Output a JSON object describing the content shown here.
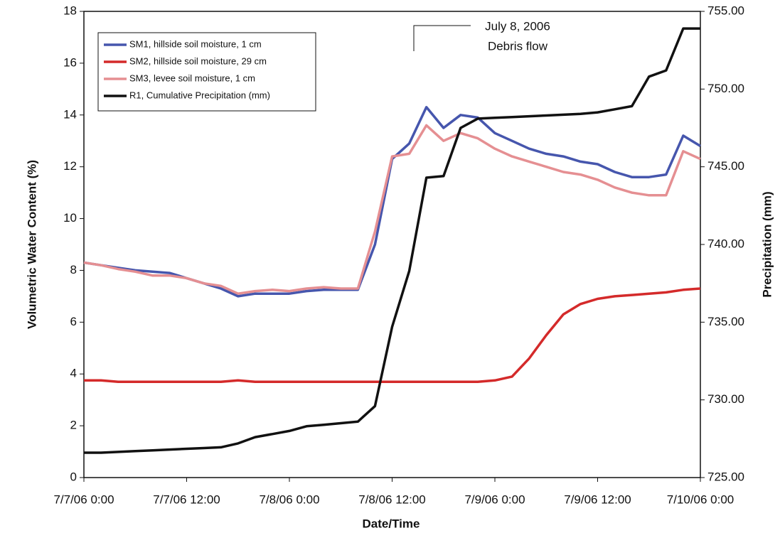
{
  "chart_data": {
    "type": "line",
    "xlabel": "Date/Time",
    "ylabel": "Volumetric Water Content (%)",
    "y2label": "Precipitation (mm)",
    "annotation": [
      "July 8, 2006",
      "Debris flow"
    ],
    "legend": "upper left",
    "grid": false,
    "x": [
      "2006-07-07T00:00",
      "2006-07-07T02:00",
      "2006-07-07T04:00",
      "2006-07-07T06:00",
      "2006-07-07T08:00",
      "2006-07-07T10:00",
      "2006-07-07T12:00",
      "2006-07-07T14:00",
      "2006-07-07T16:00",
      "2006-07-07T18:00",
      "2006-07-07T20:00",
      "2006-07-07T22:00",
      "2006-07-08T00:00",
      "2006-07-08T02:00",
      "2006-07-08T04:00",
      "2006-07-08T06:00",
      "2006-07-08T08:00",
      "2006-07-08T10:00",
      "2006-07-08T12:00",
      "2006-07-08T14:00",
      "2006-07-08T16:00",
      "2006-07-08T18:00",
      "2006-07-08T20:00",
      "2006-07-08T22:00",
      "2006-07-09T00:00",
      "2006-07-09T02:00",
      "2006-07-09T04:00",
      "2006-07-09T06:00",
      "2006-07-09T08:00",
      "2006-07-09T10:00",
      "2006-07-09T12:00",
      "2006-07-09T14:00",
      "2006-07-09T16:00",
      "2006-07-09T18:00",
      "2006-07-09T20:00",
      "2006-07-09T22:00",
      "2006-07-10T00:00"
    ],
    "series": [
      {
        "name": "SM1, hillside soil moisture, 1 cm",
        "color": "#4656ad",
        "values": [
          8.3,
          8.2,
          8.1,
          8.0,
          7.95,
          7.9,
          7.7,
          7.5,
          7.3,
          7.0,
          7.1,
          7.1,
          7.1,
          7.2,
          7.25,
          7.25,
          7.25,
          9.0,
          12.3,
          12.9,
          14.3,
          13.5,
          14.0,
          13.9,
          13.3,
          13.0,
          12.7,
          12.5,
          12.4,
          12.2,
          12.1,
          11.8,
          11.6,
          11.6,
          11.7,
          13.2,
          12.8
        ]
      },
      {
        "name": "SM2, hillside soil moisture, 29 cm",
        "color": "#d42a2a",
        "values": [
          3.75,
          3.75,
          3.7,
          3.7,
          3.7,
          3.7,
          3.7,
          3.7,
          3.7,
          3.75,
          3.7,
          3.7,
          3.7,
          3.7,
          3.7,
          3.7,
          3.7,
          3.7,
          3.7,
          3.7,
          3.7,
          3.7,
          3.7,
          3.7,
          3.75,
          3.9,
          4.6,
          5.5,
          6.3,
          6.7,
          6.9,
          7.0,
          7.05,
          7.1,
          7.15,
          7.25,
          7.3
        ]
      },
      {
        "name": "SM3, levee soil moisture, 1 cm",
        "color": "#e58f92",
        "values": [
          8.3,
          8.2,
          8.05,
          7.95,
          7.8,
          7.8,
          7.7,
          7.5,
          7.4,
          7.1,
          7.2,
          7.25,
          7.2,
          7.3,
          7.35,
          7.3,
          7.3,
          9.5,
          12.4,
          12.5,
          13.6,
          13.0,
          13.3,
          13.1,
          12.7,
          12.4,
          12.2,
          12.0,
          11.8,
          11.7,
          11.5,
          11.2,
          11.0,
          10.9,
          10.9,
          12.6,
          12.3
        ]
      },
      {
        "name": "R1, Cumulative Precipitation (mm)",
        "color": "#111111",
        "axis": "y2",
        "values": [
          726.6,
          726.6,
          726.65,
          726.7,
          726.75,
          726.8,
          726.85,
          726.9,
          726.95,
          727.2,
          727.6,
          727.8,
          728.0,
          728.3,
          728.4,
          728.5,
          728.6,
          729.6,
          734.7,
          738.3,
          744.3,
          744.4,
          747.5,
          748.1,
          748.15,
          748.2,
          748.25,
          748.3,
          748.35,
          748.4,
          748.5,
          748.7,
          748.9,
          750.8,
          751.2,
          753.9,
          753.9
        ]
      }
    ],
    "xlim": [
      "2006-07-07T00:00",
      "2006-07-10T00:00"
    ],
    "xticks": [
      {
        "value": "2006-07-07T00:00",
        "label": "7/7/06 0:00"
      },
      {
        "value": "2006-07-07T12:00",
        "label": "7/7/06 12:00"
      },
      {
        "value": "2006-07-08T00:00",
        "label": "7/8/06 0:00"
      },
      {
        "value": "2006-07-08T12:00",
        "label": "7/8/06 12:00"
      },
      {
        "value": "2006-07-09T00:00",
        "label": "7/9/06 0:00"
      },
      {
        "value": "2006-07-09T12:00",
        "label": "7/9/06 12:00"
      },
      {
        "value": "2006-07-10T00:00",
        "label": "7/10/06 0:00"
      }
    ],
    "ylim": [
      0,
      18
    ],
    "yticks": [
      0,
      2,
      4,
      6,
      8,
      10,
      12,
      14,
      16,
      18
    ],
    "y2lim": [
      725,
      755
    ],
    "y2ticks": [
      {
        "value": 725,
        "label": "725.00"
      },
      {
        "value": 730,
        "label": "730.00"
      },
      {
        "value": 735,
        "label": "735.00"
      },
      {
        "value": 740,
        "label": "740.00"
      },
      {
        "value": 745,
        "label": "745.00"
      },
      {
        "value": 750,
        "label": "750.00"
      },
      {
        "value": 755,
        "label": "755.00"
      }
    ]
  }
}
